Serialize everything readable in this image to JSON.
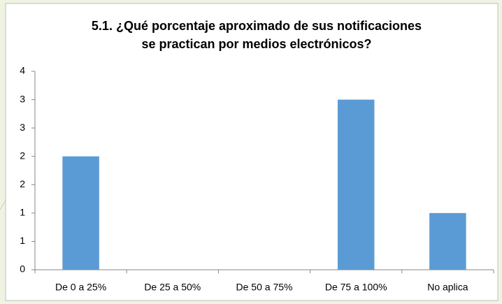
{
  "chart_data": {
    "type": "bar",
    "title": [
      "5.1. ¿Qué porcentaje aproximado de sus notificaciones",
      "se practican por medios electrónicos?"
    ],
    "categories": [
      "De 0 a 25%",
      "De 25 a 50%",
      "De 50 a 75%",
      "De 75 a 100%",
      "No aplica"
    ],
    "values": [
      2,
      0,
      0,
      3,
      1
    ],
    "color": "#5b9bd5",
    "ylim": [
      0,
      3.5
    ],
    "yticks": [
      0,
      {
        "value": 0.5,
        "label": "1"
      },
      1,
      {
        "value": 1.5,
        "label": "2"
      },
      2,
      {
        "value": 2.5,
        "label": "3"
      },
      3,
      {
        "value": 3.5,
        "label": "4"
      }
    ],
    "grid": false
  }
}
